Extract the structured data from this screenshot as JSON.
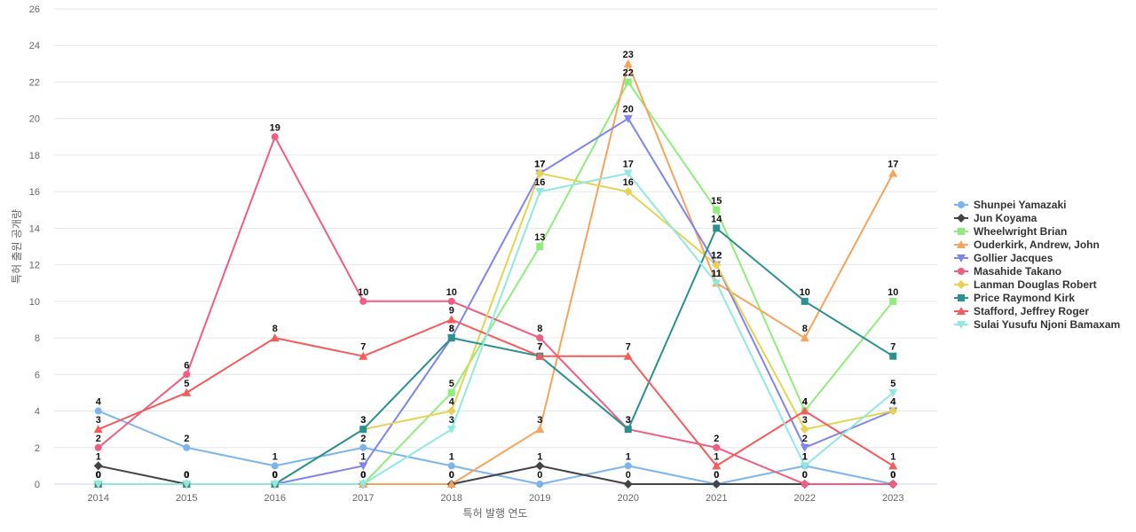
{
  "chart_data": {
    "type": "line",
    "xlabel": "특허 발행 연도",
    "ylabel": "특허 출원 공개량",
    "ylim": [
      0,
      26
    ],
    "yticks": [
      0,
      2,
      4,
      6,
      8,
      10,
      12,
      14,
      16,
      18,
      20,
      22,
      24,
      26
    ],
    "categories": [
      "2014",
      "2015",
      "2016",
      "2017",
      "2018",
      "2019",
      "2020",
      "2021",
      "2022",
      "2023"
    ],
    "grid": true,
    "legend_position": "right",
    "data_labels": true,
    "series": [
      {
        "name": "Shunpei Yamazaki",
        "color": "#7cb5ec",
        "marker": "circle",
        "values": [
          4,
          2,
          1,
          2,
          1,
          0,
          1,
          0,
          1,
          0
        ]
      },
      {
        "name": "Jun Koyama",
        "color": "#434348",
        "marker": "diamond",
        "values": [
          1,
          0,
          0,
          0,
          0,
          1,
          0,
          0,
          0,
          0
        ]
      },
      {
        "name": "Wheelwright Brian",
        "color": "#90ed7d",
        "marker": "square",
        "values": [
          0,
          0,
          0,
          0,
          5,
          13,
          22,
          15,
          4,
          10
        ]
      },
      {
        "name": "Ouderkirk, Andrew, John",
        "color": "#f7a35c",
        "marker": "triangle",
        "values": [
          0,
          0,
          0,
          0,
          0,
          3,
          23,
          11,
          8,
          17
        ]
      },
      {
        "name": "Gollier Jacques",
        "color": "#8085e9",
        "marker": "triangle-down",
        "values": [
          0,
          0,
          0,
          1,
          8,
          17,
          20,
          12,
          2,
          4
        ]
      },
      {
        "name": "Masahide Takano",
        "color": "#f15c80",
        "marker": "circle",
        "values": [
          2,
          6,
          19,
          10,
          10,
          8,
          3,
          2,
          0,
          0
        ]
      },
      {
        "name": "Lanman Douglas Robert",
        "color": "#e4d354",
        "marker": "diamond",
        "values": [
          0,
          0,
          0,
          3,
          4,
          17,
          16,
          12,
          3,
          4
        ]
      },
      {
        "name": "Price Raymond Kirk",
        "color": "#2b908f",
        "marker": "square",
        "values": [
          0,
          0,
          0,
          3,
          8,
          7,
          3,
          14,
          10,
          7
        ]
      },
      {
        "name": "Stafford, Jeffrey Roger",
        "color": "#f45b5b",
        "marker": "triangle",
        "values": [
          3,
          5,
          8,
          7,
          9,
          7,
          7,
          1,
          4,
          1
        ]
      },
      {
        "name": "Sulai Yusufu Njoni Bamaxam",
        "color": "#91e8e1",
        "marker": "triangle-down",
        "values": [
          0,
          0,
          0,
          0,
          3,
          16,
          17,
          11,
          1,
          5
        ]
      }
    ],
    "point_labels": [
      [
        1,
        "4"
      ],
      [
        1,
        "2"
      ],
      [
        1,
        "1"
      ],
      [
        1,
        "2"
      ],
      [
        1,
        "1"
      ],
      [
        2,
        "0"
      ],
      [
        2,
        "1"
      ],
      [
        2,
        "0"
      ],
      [
        2,
        "1"
      ],
      [
        2,
        "0"
      ],
      [
        2,
        "1"
      ],
      [
        2,
        "0"
      ],
      [
        2,
        "0"
      ],
      [
        null,
        ""
      ],
      [
        null,
        ""
      ],
      [
        1,
        "1"
      ],
      [
        2,
        "0"
      ],
      [
        2,
        "0"
      ],
      [
        2,
        "0"
      ],
      [
        null,
        ""
      ]
    ]
  }
}
